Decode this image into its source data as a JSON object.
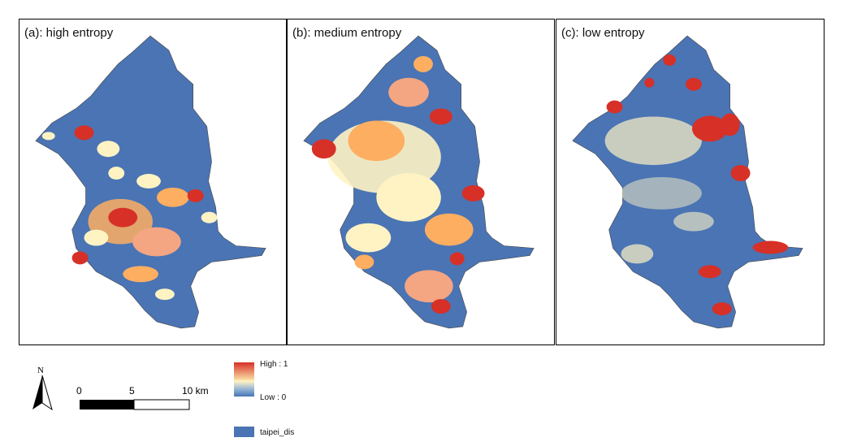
{
  "panels": [
    {
      "id": "a",
      "title": "(a): high entropy"
    },
    {
      "id": "b",
      "title": "(b): medium entropy"
    },
    {
      "id": "c",
      "title": "(c): low entropy"
    }
  ],
  "north_arrow": {
    "label": "N"
  },
  "scale_bar": {
    "ticks": [
      "0",
      "5",
      "10 km"
    ]
  },
  "legend": {
    "high_label": "High : 1",
    "low_label": "Low : 0",
    "layer_label": "taipei_dis",
    "layer_color": "#4a74b4",
    "ramp_colors": [
      "#d73027",
      "#fdae61",
      "#ffffbf",
      "#abd9e9",
      "#4575b4"
    ]
  },
  "colors": {
    "base": "#4a74b4",
    "high": "#d73027",
    "mid": "#fdae61",
    "neutral": "#fff3c4"
  }
}
